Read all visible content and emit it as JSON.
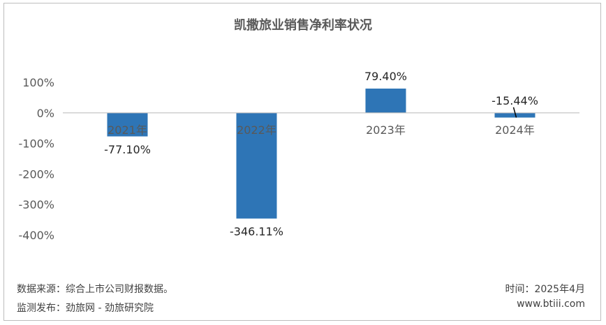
{
  "chart_data": {
    "type": "bar",
    "title": "凯撒旅业销售净利率状况",
    "categories": [
      "2021年",
      "2022年",
      "2023年",
      "2024年"
    ],
    "values": [
      -77.1,
      -346.11,
      79.4,
      -15.44
    ],
    "value_labels": [
      "-77.10%",
      "-346.11%",
      "79.40%",
      "-15.44%"
    ],
    "y_ticks": [
      100,
      0,
      -100,
      -200,
      -300,
      -400
    ],
    "y_tick_labels": [
      "100%",
      "0%",
      "-100%",
      "-200%",
      "-300%",
      "-400%"
    ],
    "ylim": [
      -400,
      100
    ],
    "grid": false,
    "bar_color": "#2e75b6"
  },
  "footer": {
    "source": "数据来源：综合上市公司财报数据。",
    "publisher": "监测发布：劲旅网 - 劲旅研究院",
    "time": "时间：2025年4月",
    "website": "www.btiii.com"
  }
}
